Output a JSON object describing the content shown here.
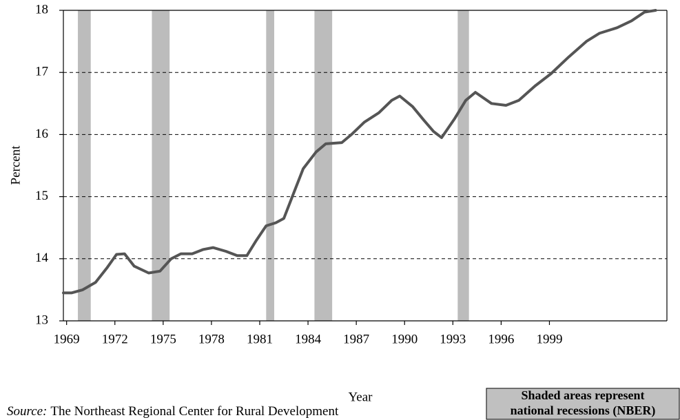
{
  "chart_data": {
    "type": "line",
    "x_label": "Year",
    "y_label": "Percent",
    "xlim": [
      1968.8,
      2006.3
    ],
    "xticks": [
      1969,
      1972,
      1975,
      1978,
      1981,
      1984,
      1987,
      1990,
      1993,
      1996,
      1999
    ],
    "ylim": [
      13,
      18
    ],
    "yticks": [
      13,
      14,
      15,
      16,
      17,
      18
    ],
    "grid": true,
    "recession_color": "#b0b0b0",
    "recessions": [
      [
        1969.7,
        1970.5
      ],
      [
        1974.3,
        1975.4
      ],
      [
        1981.4,
        1981.9
      ],
      [
        1984.4,
        1985.5
      ],
      [
        1993.3,
        1994.0
      ]
    ],
    "series": [
      {
        "color": "#555555",
        "x": [
          1968.8,
          1969.3,
          1970.0,
          1970.8,
          1971.5,
          1972.1,
          1972.6,
          1973.2,
          1974.1,
          1974.8,
          1975.5,
          1976.1,
          1976.8,
          1977.5,
          1978.1,
          1978.9,
          1979.6,
          1980.2,
          1980.8,
          1981.4,
          1982.0,
          1982.5,
          1983.1,
          1983.7,
          1984.5,
          1985.1,
          1986.1,
          1986.7,
          1987.5,
          1988.4,
          1989.2,
          1989.7,
          1990.5,
          1991.2,
          1991.8,
          1992.3,
          1993.1,
          1993.8,
          1994.4,
          1995.4,
          1996.3,
          1997.1,
          1998.1,
          1999.1,
          2000.2,
          2001.3,
          2002.1,
          2003.2,
          2004.1,
          2004.9,
          2005.6
        ],
        "values": [
          13.45,
          13.45,
          13.5,
          13.62,
          13.85,
          14.07,
          14.08,
          13.88,
          13.77,
          13.8,
          14.0,
          14.08,
          14.08,
          14.15,
          14.18,
          14.12,
          14.05,
          14.05,
          14.3,
          14.53,
          14.58,
          14.65,
          15.05,
          15.45,
          15.72,
          15.85,
          15.87,
          16.0,
          16.2,
          16.35,
          16.55,
          16.62,
          16.45,
          16.23,
          16.05,
          15.95,
          16.25,
          16.55,
          16.68,
          16.5,
          16.47,
          16.55,
          16.78,
          16.98,
          17.25,
          17.5,
          17.63,
          17.72,
          17.83,
          17.97,
          18.0
        ]
      }
    ]
  },
  "note_lines": [
    "Shaded areas represent",
    "national recessions (NBER)"
  ],
  "source_label": "Source:",
  "source": "The Northeast Regional Center for Rural Development"
}
